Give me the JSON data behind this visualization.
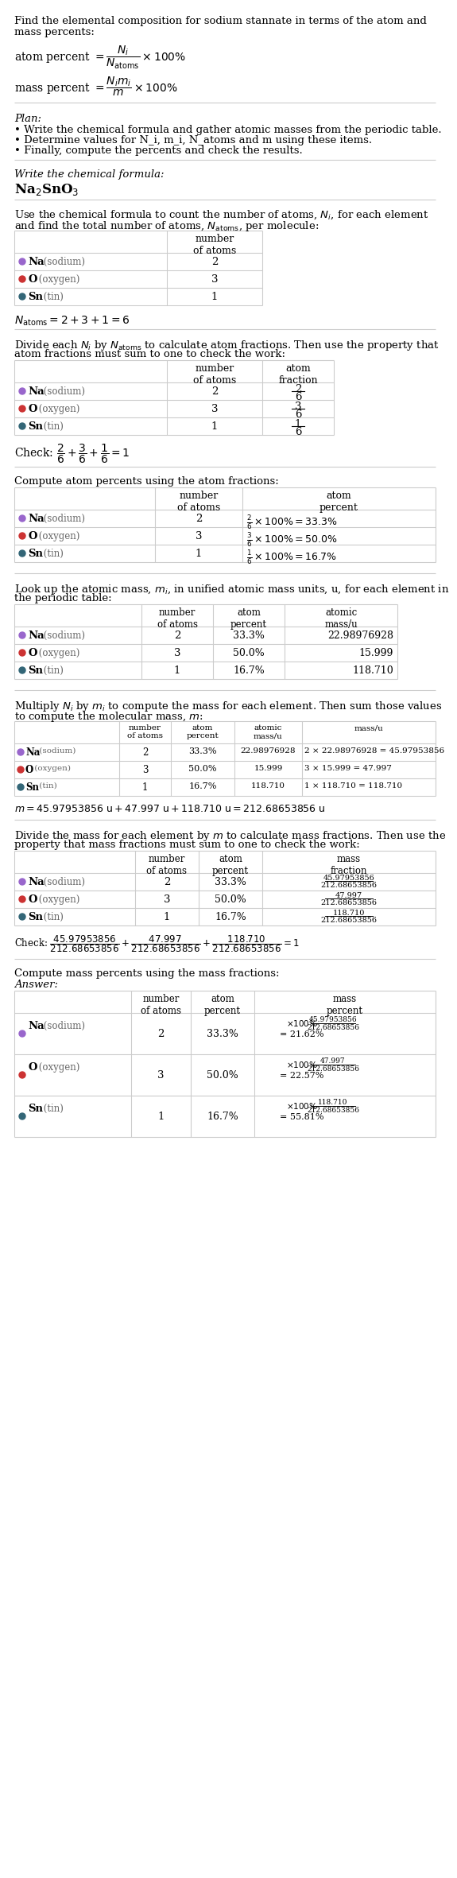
{
  "title_line1": "Find the elemental composition for sodium stannate in terms of the atom and",
  "title_line2": "mass percents:",
  "plan_header": "Plan:",
  "plan_items": [
    "Write the chemical formula and gather atomic masses from the periodic table.",
    "Determine values for N_i, m_i, N_atoms and m using these items.",
    "Finally, compute the percents and check the results."
  ],
  "chemical_formula_label": "Write the chemical formula:",
  "element_colors": [
    "#9966cc",
    "#cc3333",
    "#336677"
  ],
  "atom_percents": [
    "33.3%",
    "50.0%",
    "16.7%"
  ],
  "atomic_masses": [
    "22.98976928",
    "15.999",
    "118.710"
  ],
  "mass_exprs": [
    "2 × 22.98976928 = 45.97953856",
    "3 × 15.999 = 47.997",
    "1 × 118.710 = 118.710"
  ],
  "mass_fractions": [
    "45.97953856/212.68653856",
    "47.997/212.68653856",
    "118.710/212.68653856"
  ],
  "mass_pct_nums": [
    "45.97953856",
    "47.997",
    "118.710"
  ],
  "mass_pct_den": "212.68653856",
  "mass_pct_results": [
    "21.62%",
    "22.57%",
    "55.81%"
  ],
  "bg_color": "#ffffff",
  "text_color": "#000000"
}
